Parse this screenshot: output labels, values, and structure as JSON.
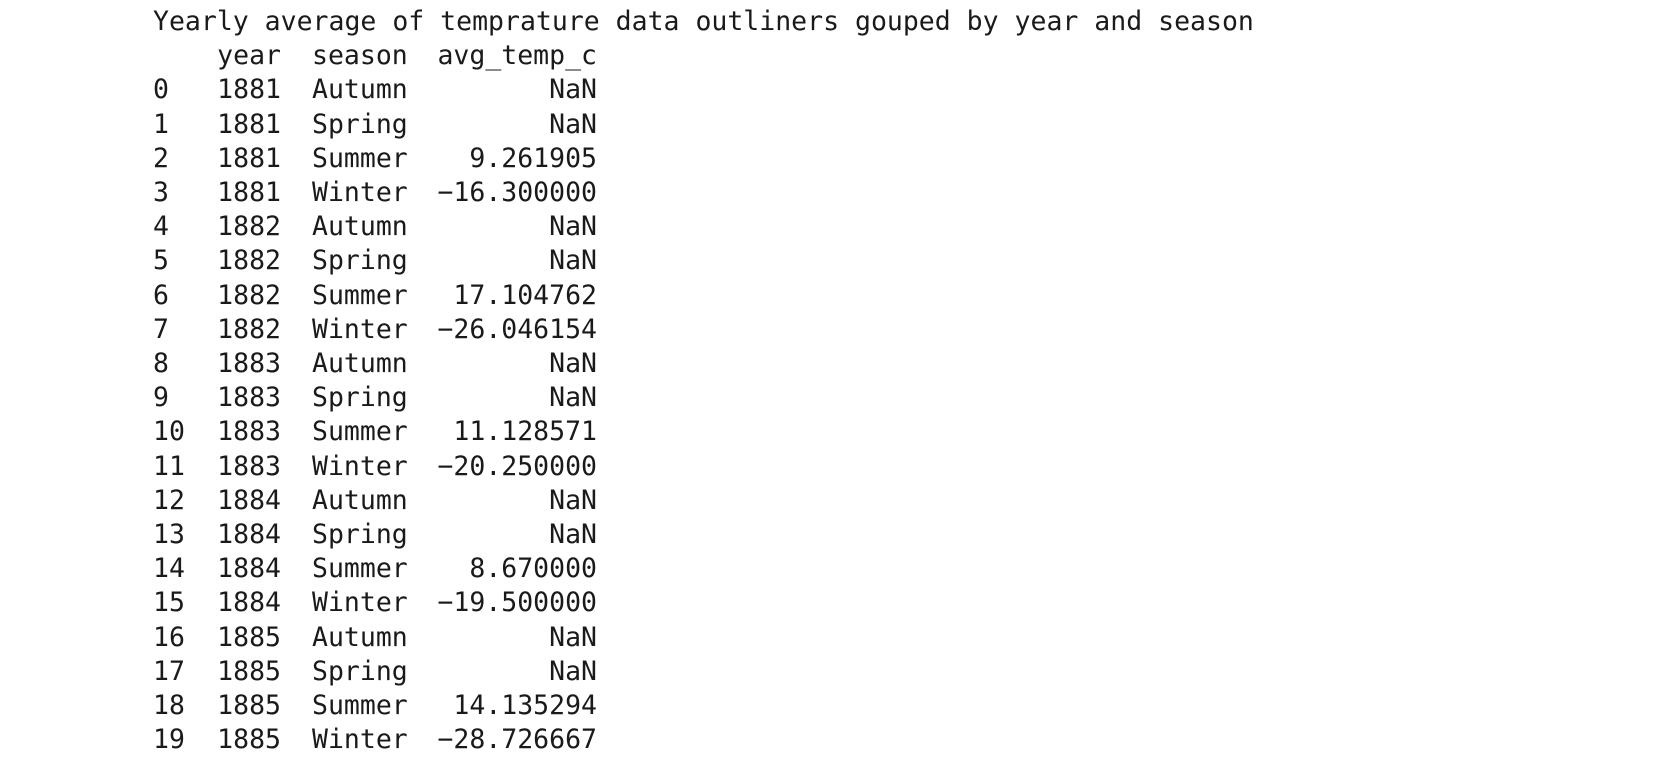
{
  "output": {
    "title": "Yearly average of temprature data outliners gouped by year and season",
    "columns": {
      "index": "",
      "year": "year",
      "season": "season",
      "avg_temp_c": "avg_temp_c"
    },
    "rows": [
      {
        "index": "0",
        "year": "1881",
        "season": "Autumn",
        "avg_temp_c": "NaN"
      },
      {
        "index": "1",
        "year": "1881",
        "season": "Spring",
        "avg_temp_c": "NaN"
      },
      {
        "index": "2",
        "year": "1881",
        "season": "Summer",
        "avg_temp_c": "9.261905"
      },
      {
        "index": "3",
        "year": "1881",
        "season": "Winter",
        "avg_temp_c": "−16.300000"
      },
      {
        "index": "4",
        "year": "1882",
        "season": "Autumn",
        "avg_temp_c": "NaN"
      },
      {
        "index": "5",
        "year": "1882",
        "season": "Spring",
        "avg_temp_c": "NaN"
      },
      {
        "index": "6",
        "year": "1882",
        "season": "Summer",
        "avg_temp_c": "17.104762"
      },
      {
        "index": "7",
        "year": "1882",
        "season": "Winter",
        "avg_temp_c": "−26.046154"
      },
      {
        "index": "8",
        "year": "1883",
        "season": "Autumn",
        "avg_temp_c": "NaN"
      },
      {
        "index": "9",
        "year": "1883",
        "season": "Spring",
        "avg_temp_c": "NaN"
      },
      {
        "index": "10",
        "year": "1883",
        "season": "Summer",
        "avg_temp_c": "11.128571"
      },
      {
        "index": "11",
        "year": "1883",
        "season": "Winter",
        "avg_temp_c": "−20.250000"
      },
      {
        "index": "12",
        "year": "1884",
        "season": "Autumn",
        "avg_temp_c": "NaN"
      },
      {
        "index": "13",
        "year": "1884",
        "season": "Spring",
        "avg_temp_c": "NaN"
      },
      {
        "index": "14",
        "year": "1884",
        "season": "Summer",
        "avg_temp_c": "8.670000"
      },
      {
        "index": "15",
        "year": "1884",
        "season": "Winter",
        "avg_temp_c": "−19.500000"
      },
      {
        "index": "16",
        "year": "1885",
        "season": "Autumn",
        "avg_temp_c": "NaN"
      },
      {
        "index": "17",
        "year": "1885",
        "season": "Spring",
        "avg_temp_c": "NaN"
      },
      {
        "index": "18",
        "year": "1885",
        "season": "Summer",
        "avg_temp_c": "14.135294"
      },
      {
        "index": "19",
        "year": "1885",
        "season": "Winter",
        "avg_temp_c": "−28.726667"
      }
    ]
  }
}
